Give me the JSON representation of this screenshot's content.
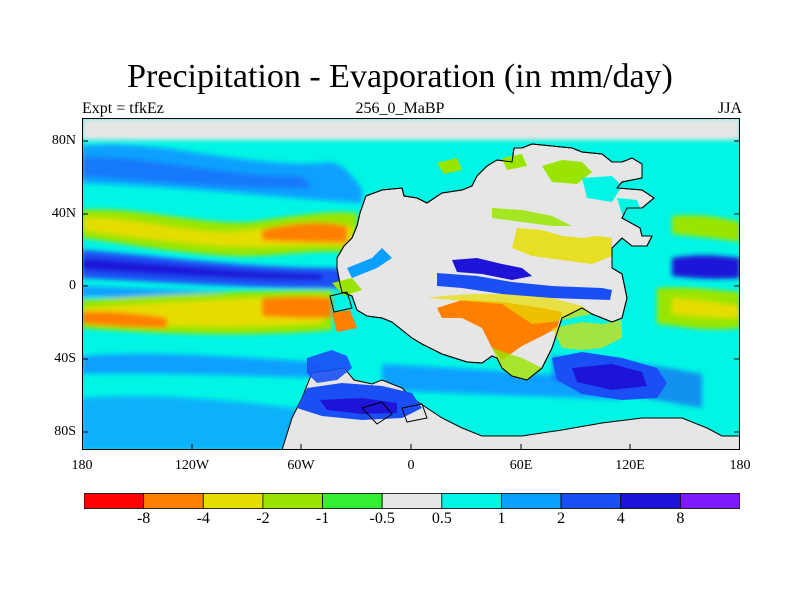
{
  "title": "Precipitation - Evaporation (in mm/day)",
  "left_label": "Expt = tfkEz",
  "center_label": "256_0_MaBP",
  "right_label": "JJA",
  "x_ticks": [
    "180",
    "120W",
    "60W",
    "0",
    "60E",
    "120E",
    "180"
  ],
  "y_ticks": [
    "80N",
    "40N",
    "0",
    "40S",
    "80S"
  ],
  "colorbar": {
    "labels": [
      "-8",
      "-4",
      "-2",
      "-1",
      "-0.5",
      "0.5",
      "1",
      "2",
      "4",
      "8"
    ],
    "colors": [
      "#ff0000",
      "#ff7f00",
      "#e5dd00",
      "#99e500",
      "#33ee33",
      "#e6e6e6",
      "#00f5e5",
      "#0aa0ff",
      "#1a4ff5",
      "#1e14d8",
      "#7f1aff"
    ]
  },
  "colors": {
    "land": "#e6e6e6",
    "coast": "#000000"
  }
}
